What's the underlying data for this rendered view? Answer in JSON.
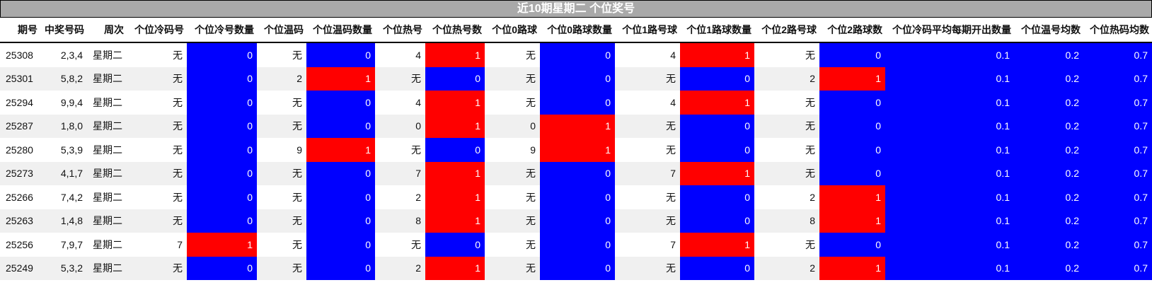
{
  "title": "近10期星期二 个位奖号",
  "colors": {
    "zero": "#0000ff",
    "one": "#ff0000",
    "title_bg": "#a9a9a9"
  },
  "headers": [
    "期号",
    "中奖号码",
    "周次",
    "个位冷码号",
    "个位冷号数量",
    "个位温码",
    "个位温码数量",
    "个位热号",
    "个位热号数",
    "个位0路球",
    "个位0路球数量",
    "个位1路号球",
    "个位1路球数量",
    "个位2路号球",
    "个位2路球数",
    "个位冷码平均每期开出数量",
    "个位温号均数",
    "个位热码均数"
  ],
  "rows": [
    [
      "25308",
      "2,3,4",
      "星期二",
      "无",
      "0",
      "无",
      "0",
      "4",
      "1",
      "无",
      "0",
      "4",
      "1",
      "无",
      "0",
      "0.1",
      "0.2",
      "0.7"
    ],
    [
      "25301",
      "5,8,2",
      "星期二",
      "无",
      "0",
      "2",
      "1",
      "无",
      "0",
      "无",
      "0",
      "无",
      "0",
      "2",
      "1",
      "0.1",
      "0.2",
      "0.7"
    ],
    [
      "25294",
      "9,9,4",
      "星期二",
      "无",
      "0",
      "无",
      "0",
      "4",
      "1",
      "无",
      "0",
      "4",
      "1",
      "无",
      "0",
      "0.1",
      "0.2",
      "0.7"
    ],
    [
      "25287",
      "1,8,0",
      "星期二",
      "无",
      "0",
      "无",
      "0",
      "0",
      "1",
      "0",
      "1",
      "无",
      "0",
      "无",
      "0",
      "0.1",
      "0.2",
      "0.7"
    ],
    [
      "25280",
      "5,3,9",
      "星期二",
      "无",
      "0",
      "9",
      "1",
      "无",
      "0",
      "9",
      "1",
      "无",
      "0",
      "无",
      "0",
      "0.1",
      "0.2",
      "0.7"
    ],
    [
      "25273",
      "4,1,7",
      "星期二",
      "无",
      "0",
      "无",
      "0",
      "7",
      "1",
      "无",
      "0",
      "7",
      "1",
      "无",
      "0",
      "0.1",
      "0.2",
      "0.7"
    ],
    [
      "25266",
      "7,4,2",
      "星期二",
      "无",
      "0",
      "无",
      "0",
      "2",
      "1",
      "无",
      "0",
      "无",
      "0",
      "2",
      "1",
      "0.1",
      "0.2",
      "0.7"
    ],
    [
      "25263",
      "1,4,8",
      "星期二",
      "无",
      "0",
      "无",
      "0",
      "8",
      "1",
      "无",
      "0",
      "无",
      "0",
      "8",
      "1",
      "0.1",
      "0.2",
      "0.7"
    ],
    [
      "25256",
      "7,9,7",
      "星期二",
      "7",
      "1",
      "无",
      "0",
      "无",
      "0",
      "无",
      "0",
      "7",
      "1",
      "无",
      "0",
      "0.1",
      "0.2",
      "0.7"
    ],
    [
      "25249",
      "5,3,2",
      "星期二",
      "无",
      "0",
      "无",
      "0",
      "2",
      "1",
      "无",
      "0",
      "无",
      "0",
      "2",
      "1",
      "0.1",
      "0.2",
      "0.7"
    ]
  ]
}
